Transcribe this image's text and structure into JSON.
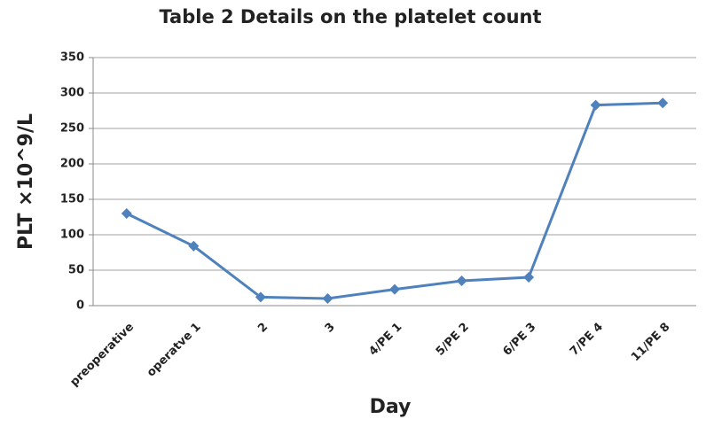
{
  "chart_data": {
    "type": "line",
    "title": "Table 2  Details on the platelet count",
    "x_label": "Day",
    "y_label": "PLT ×10^9/L",
    "categories": [
      "preoperative",
      "operatve 1",
      "2",
      "3",
      "4/PE 1",
      "5/PE 2",
      "6/PE 3",
      "7/PE 4",
      "11/PE 8"
    ],
    "series": [
      {
        "name": "PLT",
        "color": "#4f81bd",
        "values": [
          130,
          84,
          12,
          10,
          23,
          35,
          40,
          283,
          286
        ]
      }
    ],
    "ylim": [
      0,
      350
    ],
    "yticks": [
      0,
      50,
      100,
      150,
      200,
      250,
      300,
      350
    ],
    "grid": true
  }
}
